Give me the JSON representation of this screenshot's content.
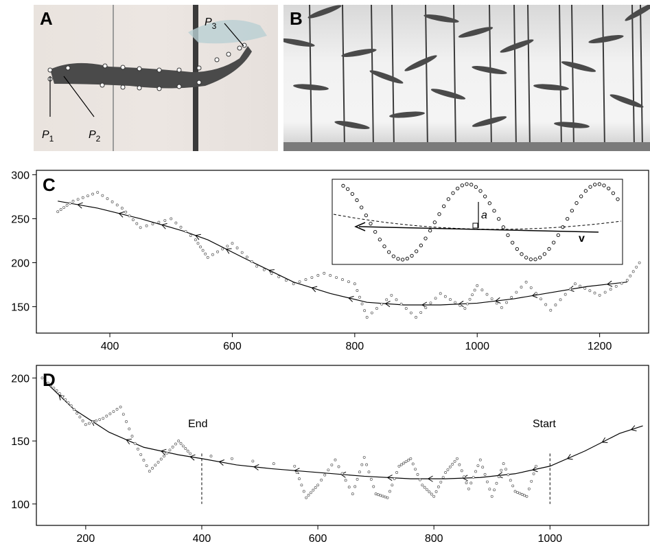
{
  "figure": {
    "panels": [
      {
        "id": "A",
        "label": "A",
        "annotations": {
          "p1": "P",
          "p1_sub": "1",
          "p2": "P",
          "p2_sub": "2",
          "p3": "P",
          "p3_sub": "3"
        }
      },
      {
        "id": "B",
        "label": "B"
      },
      {
        "id": "C",
        "label": "C",
        "inset": {
          "a_label": "a",
          "v_label": "v"
        }
      },
      {
        "id": "D",
        "label": "D",
        "annotations": {
          "end": "End",
          "start": "Start"
        }
      }
    ]
  },
  "chart_data": [
    {
      "panel": "C",
      "type": "scatter",
      "title": "",
      "xlabel": "",
      "ylabel": "",
      "xlim": [
        280,
        1280
      ],
      "ylim": [
        120,
        305
      ],
      "xticks": [
        400,
        600,
        800,
        1000,
        1200
      ],
      "yticks": [
        150,
        200,
        250,
        300
      ],
      "series": [
        {
          "kind": "centerline-arrow-path",
          "x": [
            315,
            380,
            450,
            520,
            560,
            620,
            700,
            760,
            820,
            880,
            940,
            1000,
            1060,
            1120,
            1180,
            1245
          ],
          "y": [
            270,
            262,
            250,
            236,
            226,
            205,
            178,
            165,
            155,
            152,
            152,
            154,
            159,
            166,
            173,
            178
          ]
        },
        {
          "kind": "head-position-markers",
          "x": [
            315,
            340,
            380,
            420,
            450,
            500,
            540,
            560,
            600,
            640,
            700,
            750,
            800,
            820,
            860,
            900,
            940,
            980,
            1000,
            1040,
            1080,
            1120,
            1160,
            1200,
            1245,
            1270
          ],
          "y": [
            258,
            270,
            280,
            262,
            240,
            250,
            226,
            206,
            222,
            196,
            176,
            188,
            176,
            138,
            163,
            138,
            165,
            148,
            174,
            149,
            178,
            146,
            176,
            163,
            180,
            205
          ]
        }
      ],
      "inset": {
        "xlim": [
          0,
          1
        ],
        "ylim": [
          0,
          1
        ]
      }
    },
    {
      "panel": "D",
      "type": "scatter",
      "title": "",
      "xlabel": "",
      "ylabel": "",
      "xlim": [
        115,
        1170
      ],
      "ylim": [
        83,
        210
      ],
      "xticks": [
        200,
        400,
        600,
        800,
        1000
      ],
      "yticks": [
        100,
        150,
        200
      ],
      "vlines": [
        400,
        1000
      ],
      "series": [
        {
          "kind": "centerline-arrow-path",
          "x": [
            128,
            180,
            240,
            300,
            360,
            400,
            460,
            520,
            600,
            680,
            760,
            820,
            880,
            940,
            1000,
            1060,
            1120,
            1160
          ],
          "y": [
            198,
            175,
            157,
            145,
            139,
            136,
            131,
            128,
            125,
            122,
            120,
            120,
            121,
            124,
            130,
            142,
            156,
            162
          ]
        },
        {
          "kind": "head-position-markers",
          "x": [
            125,
            150,
            175,
            200,
            230,
            260,
            285,
            310,
            335,
            360,
            380,
            560,
            580,
            600,
            630,
            660,
            680,
            700,
            720,
            740,
            760,
            780,
            800,
            820,
            840,
            860,
            880,
            900,
            920,
            940,
            960,
            980
          ],
          "y": [
            200,
            190,
            178,
            163,
            168,
            177,
            148,
            126,
            138,
            150,
            140,
            130,
            105,
            115,
            135,
            108,
            137,
            108,
            105,
            130,
            136,
            115,
            106,
            125,
            136,
            112,
            135,
            106,
            132,
            110,
            106,
            136
          ]
        }
      ]
    }
  ]
}
